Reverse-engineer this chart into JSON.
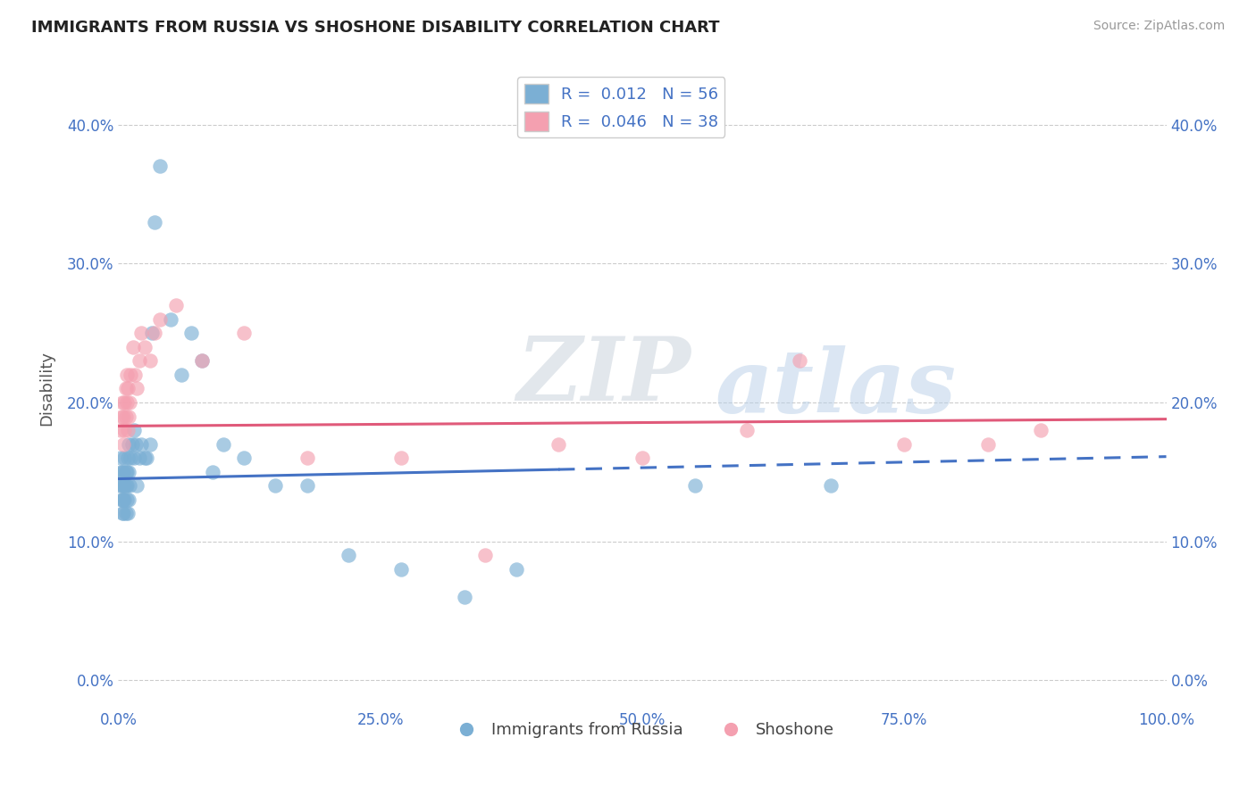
{
  "title": "IMMIGRANTS FROM RUSSIA VS SHOSHONE DISABILITY CORRELATION CHART",
  "source": "Source: ZipAtlas.com",
  "xlabel": "",
  "ylabel": "Disability",
  "watermark_zip": "ZIP",
  "watermark_atlas": "atlas",
  "xlim": [
    0.0,
    1.0
  ],
  "ylim": [
    -0.02,
    0.44
  ],
  "xticks": [
    0.0,
    0.25,
    0.5,
    0.75,
    1.0
  ],
  "xtick_labels": [
    "0.0%",
    "25.0%",
    "50.0%",
    "75.0%",
    "100.0%"
  ],
  "yticks": [
    0.0,
    0.1,
    0.2,
    0.3,
    0.4
  ],
  "ytick_labels": [
    "0.0%",
    "10.0%",
    "20.0%",
    "30.0%",
    "40.0%"
  ],
  "blue_R": "0.012",
  "blue_N": "56",
  "pink_R": "0.046",
  "pink_N": "38",
  "blue_color": "#7bafd4",
  "pink_color": "#f4a0b0",
  "blue_line_color": "#4472c4",
  "pink_line_color": "#e05a7a",
  "legend_blue_label": "Immigrants from Russia",
  "legend_pink_label": "Shoshone",
  "blue_scatter_x": [
    0.001,
    0.002,
    0.002,
    0.003,
    0.003,
    0.004,
    0.004,
    0.004,
    0.005,
    0.005,
    0.005,
    0.005,
    0.006,
    0.006,
    0.006,
    0.007,
    0.007,
    0.007,
    0.008,
    0.008,
    0.008,
    0.009,
    0.009,
    0.01,
    0.01,
    0.01,
    0.011,
    0.012,
    0.013,
    0.015,
    0.015,
    0.017,
    0.018,
    0.02,
    0.022,
    0.025,
    0.027,
    0.03,
    0.032,
    0.035,
    0.04,
    0.05,
    0.06,
    0.07,
    0.08,
    0.09,
    0.1,
    0.12,
    0.15,
    0.18,
    0.22,
    0.27,
    0.33,
    0.38,
    0.55,
    0.68
  ],
  "blue_scatter_y": [
    0.14,
    0.15,
    0.16,
    0.13,
    0.14,
    0.12,
    0.13,
    0.15,
    0.12,
    0.13,
    0.14,
    0.15,
    0.13,
    0.14,
    0.16,
    0.12,
    0.14,
    0.15,
    0.13,
    0.14,
    0.15,
    0.12,
    0.16,
    0.13,
    0.15,
    0.17,
    0.14,
    0.16,
    0.17,
    0.16,
    0.18,
    0.17,
    0.14,
    0.16,
    0.17,
    0.16,
    0.16,
    0.17,
    0.25,
    0.33,
    0.37,
    0.26,
    0.22,
    0.25,
    0.23,
    0.15,
    0.17,
    0.16,
    0.14,
    0.14,
    0.09,
    0.08,
    0.06,
    0.08,
    0.14,
    0.14
  ],
  "pink_scatter_x": [
    0.002,
    0.003,
    0.004,
    0.005,
    0.005,
    0.006,
    0.006,
    0.007,
    0.007,
    0.008,
    0.008,
    0.009,
    0.009,
    0.01,
    0.011,
    0.012,
    0.014,
    0.016,
    0.018,
    0.02,
    0.022,
    0.025,
    0.03,
    0.035,
    0.04,
    0.055,
    0.08,
    0.12,
    0.18,
    0.27,
    0.35,
    0.42,
    0.5,
    0.6,
    0.65,
    0.75,
    0.83,
    0.88
  ],
  "pink_scatter_y": [
    0.18,
    0.19,
    0.2,
    0.17,
    0.19,
    0.18,
    0.2,
    0.21,
    0.19,
    0.2,
    0.22,
    0.18,
    0.21,
    0.19,
    0.2,
    0.22,
    0.24,
    0.22,
    0.21,
    0.23,
    0.25,
    0.24,
    0.23,
    0.25,
    0.26,
    0.27,
    0.23,
    0.25,
    0.16,
    0.16,
    0.09,
    0.17,
    0.16,
    0.18,
    0.23,
    0.17,
    0.17,
    0.18
  ],
  "background_color": "#ffffff",
  "grid_color": "#cccccc",
  "title_color": "#222222",
  "axis_label_color": "#555555",
  "tick_label_color": "#4472c4",
  "blue_line_solid_end": 0.42,
  "blue_line_dash_start": 0.42
}
